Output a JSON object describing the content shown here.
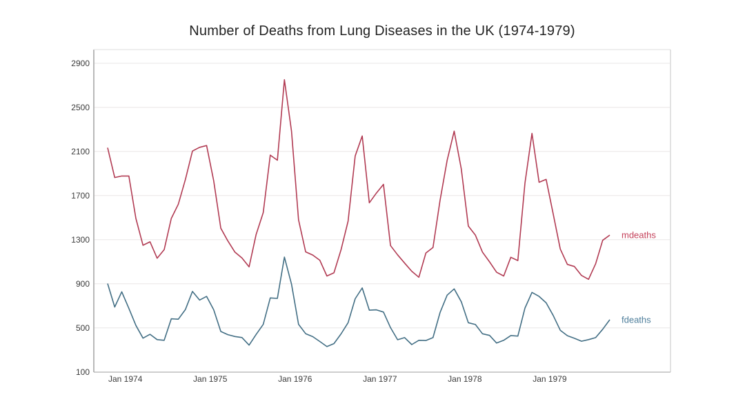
{
  "chart_data": {
    "type": "line",
    "title": "Number of Deaths from Lung Diseases in the UK (1974-1979)",
    "xlabel": "",
    "ylabel": "",
    "x_unit": "month index from Jan 1974",
    "x_tick_labels": [
      "Jan 1974",
      "Jan 1975",
      "Jan 1976",
      "Jan 1977",
      "Jan 1978",
      "Jan 1979"
    ],
    "x_tick_month_index": [
      0,
      12,
      24,
      36,
      48,
      60
    ],
    "y_ticks": [
      100,
      500,
      900,
      1300,
      1700,
      2100,
      2500,
      2900
    ],
    "ylim": [
      100,
      3025
    ],
    "grid": "horizontal-only",
    "legend_position": "right-end-labels",
    "series": [
      {
        "name": "mdeaths",
        "color": "#b13a52",
        "label_color": "#c4415a",
        "values": [
          2134,
          1863,
          1877,
          1877,
          1492,
          1249,
          1280,
          1131,
          1209,
          1492,
          1621,
          1846,
          2103,
          2137,
          2153,
          1833,
          1403,
          1288,
          1186,
          1133,
          1053,
          1347,
          1545,
          2066,
          2020,
          2750,
          2283,
          1479,
          1189,
          1160,
          1113,
          970,
          999,
          1208,
          1467,
          2059,
          2240,
          1634,
          1722,
          1801,
          1246,
          1162,
          1087,
          1013,
          959,
          1179,
          1229,
          1655,
          2019,
          2284,
          1942,
          1423,
          1340,
          1187,
          1098,
          1004,
          970,
          1140,
          1110,
          1812,
          2263,
          1820,
          1846,
          1531,
          1215,
          1075,
          1056,
          975,
          940,
          1081,
          1294,
          1341
        ]
      },
      {
        "name": "fdeaths",
        "color": "#426e84",
        "label_color": "#4e7e9b",
        "values": [
          901,
          689,
          827,
          677,
          522,
          406,
          441,
          393,
          387,
          582,
          578,
          666,
          830,
          752,
          785,
          664,
          467,
          438,
          421,
          412,
          343,
          440,
          531,
          771,
          767,
          1141,
          896,
          532,
          447,
          420,
          376,
          330,
          357,
          445,
          546,
          764,
          862,
          660,
          663,
          643,
          502,
          392,
          411,
          348,
          387,
          385,
          411,
          638,
          796,
          853,
          737,
          546,
          530,
          446,
          431,
          362,
          387,
          430,
          425,
          679,
          821,
          785,
          727,
          612,
          478,
          429,
          405,
          379,
          393,
          411,
          487,
          574
        ]
      }
    ],
    "colors": {
      "background": "#ffffff",
      "grid": "#efeded",
      "spine_left": "#8a8a8a",
      "spine_bottom": "#b0b0b0",
      "spine_top": "#dcdcdc",
      "spine_right": "#c4c4c4",
      "tick_text": "#3a3a3a",
      "title_text": "#232323"
    }
  }
}
